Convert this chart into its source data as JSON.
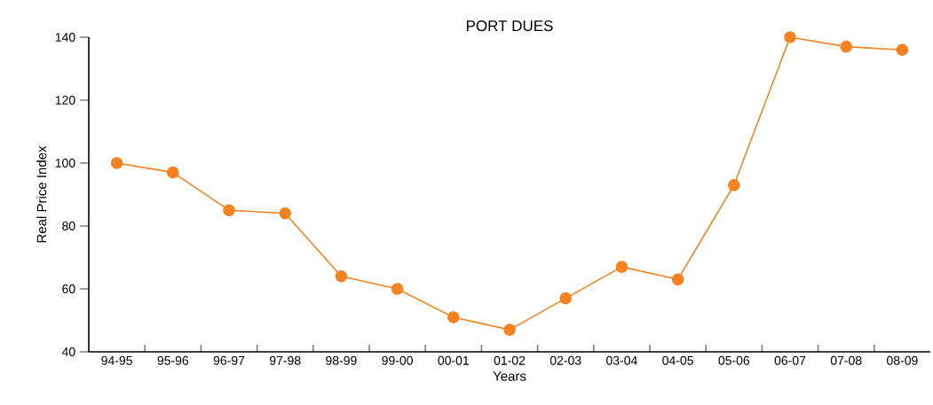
{
  "chart_data": {
    "type": "line",
    "title": "PORT DUES",
    "xlabel": "Years",
    "ylabel": "Real Price Index",
    "categories": [
      "94-95",
      "95-96",
      "96-97",
      "97-98",
      "98-99",
      "99-00",
      "00-01",
      "01-02",
      "02-03",
      "03-04",
      "04-05",
      "05-06",
      "06-07",
      "07-08",
      "08-09"
    ],
    "values": [
      100,
      97,
      85,
      84,
      64,
      60,
      51,
      47,
      57,
      67,
      63,
      93,
      140,
      137,
      136
    ],
    "color": "#f58220",
    "marker": "circle",
    "line_style": "solid",
    "grid": false,
    "ylim": [
      40,
      140
    ],
    "yticks": [
      40,
      60,
      80,
      100,
      120,
      140
    ]
  }
}
